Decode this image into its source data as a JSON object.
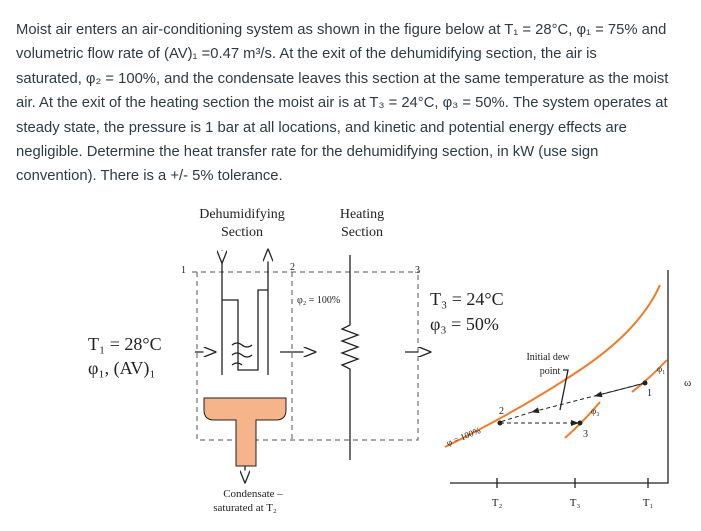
{
  "problem": {
    "lines": [
      "Moist air enters an air-conditioning system as shown in the figure below at T₁ = 28°C, φ₁ = 75% and",
      "volumetric flow rate of (AV)₁ =0.47 m³/s. At the exit of the dehumidifying section, the air is",
      "saturated, φ₂ = 100%, and the condensate leaves this section at the same temperature as the moist",
      "air. At the exit of the heating section the moist air is at T₃ = 24°C, φ₃ = 50%. The system operates at",
      "steady state, the pressure is 1 bar at all locations, and kinetic and potential energy effects are",
      "negligible. Determine the heat transfer rate for the dehumidifying section, in kW (use sign",
      "convention). There is a +/- 5% tolerance."
    ]
  },
  "figure": {
    "dehumidifying": [
      "Dehumidifying",
      "Section"
    ],
    "heating": [
      "Heating",
      "Section"
    ],
    "states": [
      "1",
      "2",
      "3"
    ],
    "phi2": "φ₂ = 100%",
    "exit": [
      "T₃ = 24°C",
      "φ₃ = 50%"
    ],
    "inlet": [
      "T₁ = 28°C",
      "φ₁, (AV)₁"
    ],
    "condensate": [
      "Condensate –",
      "saturated at T₂"
    ],
    "chart": {
      "dew_point": [
        "Initial dew",
        "point"
      ],
      "saturation": "φ = 100%",
      "omega": "ω",
      "temps": [
        "T₂",
        "T₃",
        "T₁"
      ],
      "points": [
        "2",
        "3",
        "1"
      ],
      "phi_labels": [
        "φ₃",
        "φ₁"
      ]
    }
  }
}
